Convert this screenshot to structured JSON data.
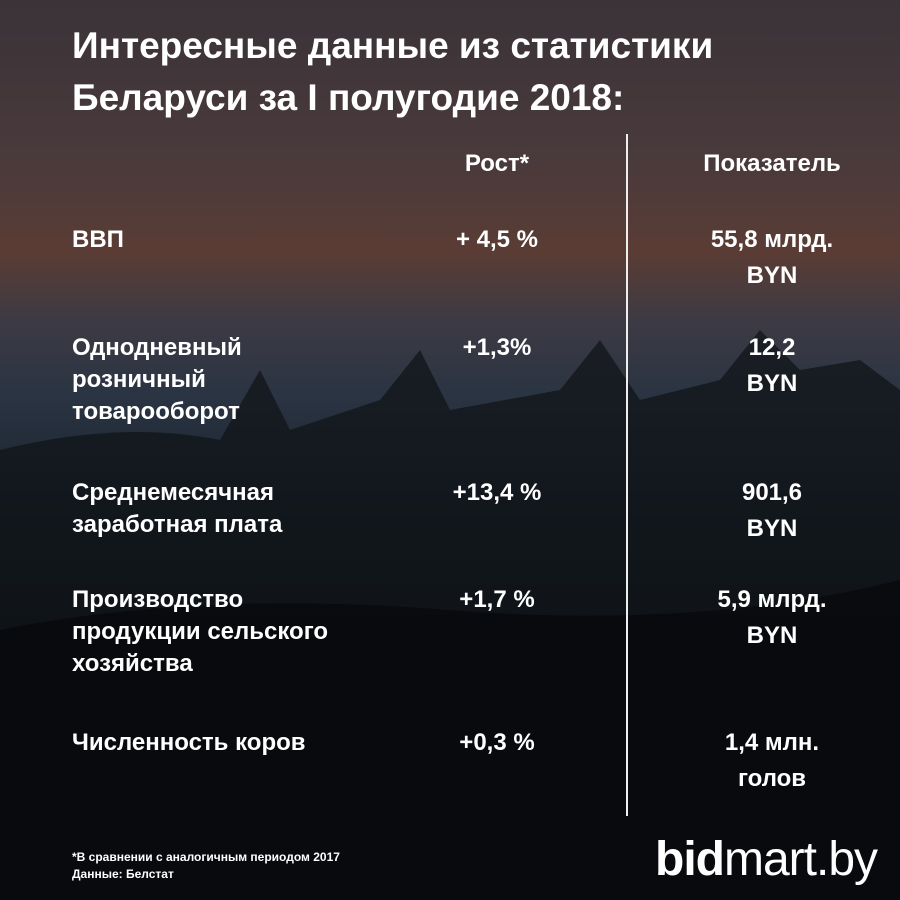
{
  "title": [
    "Интересные данные из статистики",
    "Беларуси за I полугодие 2018:"
  ],
  "table": {
    "headers": [
      "Рост*",
      "Показатель"
    ],
    "rows": [
      {
        "label": [
          "ВВП"
        ],
        "growth": "+ 4,5 %",
        "value": [
          "55,8 млрд.",
          "BYN"
        ]
      },
      {
        "label": [
          "Однодневный",
          "розничный",
          "товарооборот"
        ],
        "growth": "+1,3%",
        "value": [
          "12,2",
          "BYN"
        ]
      },
      {
        "label": [
          "Среднемесячная",
          "заработная плата"
        ],
        "growth": "+13,4 %",
        "value": [
          "901,6",
          "BYN"
        ]
      },
      {
        "label": [
          "Производство",
          "продукции сельского",
          "хозяйства"
        ],
        "growth": "+1,7 %",
        "value": [
          "5,9 млрд.",
          "BYN"
        ]
      },
      {
        "label": [
          "Численность коров"
        ],
        "growth": "+0,3 %",
        "value": [
          "1,4 млн.",
          "голов"
        ]
      }
    ]
  },
  "footnote": [
    "*В сравнении с аналогичным периодом  2017",
    "Данные: Белстат"
  ],
  "logo": [
    "bid",
    "mart.by"
  ]
}
